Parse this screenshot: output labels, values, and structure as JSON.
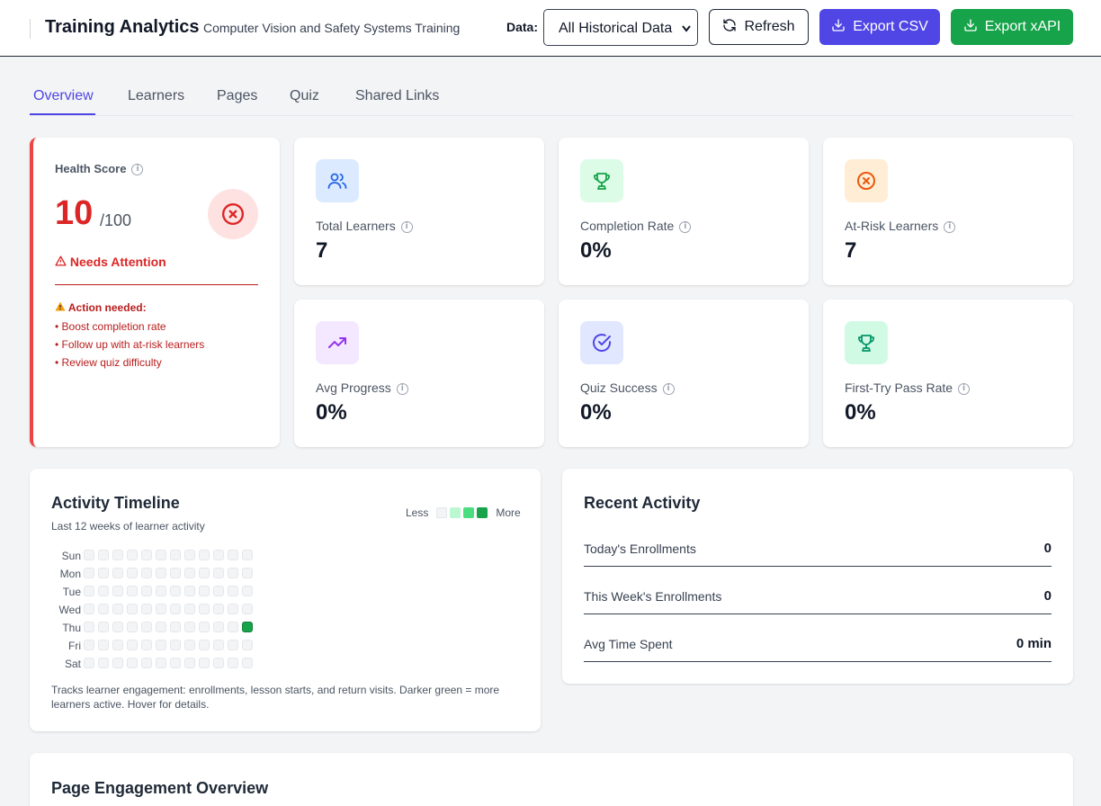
{
  "header": {
    "title": "Training Analytics",
    "subtitle": "Computer Vision and Safety Systems Training",
    "data_label": "Data:",
    "data_select_value": "All Historical Data",
    "refresh_label": "Refresh",
    "export_csv_label": "Export CSV",
    "export_xapi_label": "Export xAPI",
    "colors": {
      "csv_button": "#4f46e5",
      "xapi_button": "#16a34a"
    }
  },
  "tabs": [
    {
      "label": "Overview",
      "active": true
    },
    {
      "label": "Learners",
      "active": false
    },
    {
      "label": "Pages",
      "active": false
    },
    {
      "label": "Quiz",
      "active": false
    },
    {
      "label": "Shared Links",
      "active": false
    }
  ],
  "health": {
    "label": "Health Score",
    "score": "10",
    "max": "/100",
    "status_icon": "warning-triangle-icon",
    "status": "Needs Attention",
    "action_icon": "warning-emoji-icon",
    "action_title": "Action needed:",
    "actions": [
      "• Boost completion rate",
      "• Follow up with at-risk learners",
      "• Review quiz difficulty"
    ],
    "accent": "#dc2626"
  },
  "metrics": [
    {
      "label": "Total Learners",
      "value": "7",
      "icon": "users-icon",
      "icon_bg": "#dbeafe",
      "icon_color": "#2563eb"
    },
    {
      "label": "Completion Rate",
      "value": "0%",
      "icon": "trophy-icon",
      "icon_bg": "#dcfce7",
      "icon_color": "#16a34a"
    },
    {
      "label": "At-Risk Learners",
      "value": "7",
      "icon": "x-circle-icon",
      "icon_bg": "#ffedd5",
      "icon_color": "#ea580c"
    },
    {
      "label": "Avg Progress",
      "value": "0%",
      "icon": "trending-up-icon",
      "icon_bg": "#f3e8ff",
      "icon_color": "#9333ea"
    },
    {
      "label": "Quiz Success",
      "value": "0%",
      "icon": "check-circle-icon",
      "icon_bg": "#e0e7ff",
      "icon_color": "#4f46e5"
    },
    {
      "label": "First-Try Pass Rate",
      "value": "0%",
      "icon": "trophy-icon",
      "icon_bg": "#d1fae5",
      "icon_color": "#059669"
    }
  ],
  "timeline": {
    "title": "Activity Timeline",
    "subtitle": "Last 12 weeks of learner activity",
    "legend_less": "Less",
    "legend_more": "More",
    "legend_colors": [
      "#f3f4f6",
      "#bbf7d0",
      "#4ade80",
      "#16a34a"
    ],
    "days": [
      "Sun",
      "Mon",
      "Tue",
      "Wed",
      "Thu",
      "Fri",
      "Sat"
    ],
    "weeks": 12,
    "active_cells": [
      {
        "day": "Thu",
        "week": 11,
        "level": 3
      }
    ],
    "footnote": "Tracks learner engagement: enrollments, lesson starts, and return visits. Darker green = more learners active. Hover for details."
  },
  "recent": {
    "title": "Recent Activity",
    "rows": [
      {
        "label": "Today's Enrollments",
        "value": "0"
      },
      {
        "label": "This Week's Enrollments",
        "value": "0"
      },
      {
        "label": "Avg Time Spent",
        "value": "0 min"
      }
    ]
  },
  "engagement": {
    "title": "Page Engagement Overview"
  }
}
